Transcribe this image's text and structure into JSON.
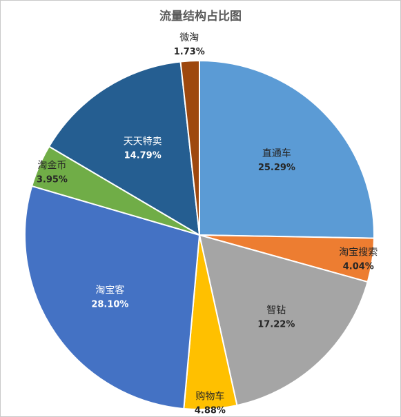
{
  "chart_data": {
    "type": "pie",
    "title": "流量结构占比图",
    "categories": [
      "直通车",
      "淘宝搜索",
      "智钻",
      "购物车",
      "淘宝客",
      "淘金币",
      "天天特卖",
      "微淘"
    ],
    "values": [
      25.29,
      4.04,
      17.22,
      4.88,
      28.1,
      3.95,
      14.79,
      1.73
    ],
    "labels": [
      "25.29%",
      "4.04%",
      "17.22%",
      "4.88%",
      "28.10%",
      "3.95%",
      "14.79%",
      "1.73%"
    ],
    "colors": [
      "#5B9BD5",
      "#ED7D31",
      "#A5A5A5",
      "#FFC000",
      "#4472C4",
      "#70AD47",
      "#255E91",
      "#9E480E"
    ],
    "label_colors": [
      "#262626",
      "#262626",
      "#262626",
      "#262626",
      "#ffffff",
      "#262626",
      "#ffffff",
      "#262626"
    ],
    "start_angle": "12 o'clock",
    "direction": "clockwise",
    "legend": "none"
  }
}
